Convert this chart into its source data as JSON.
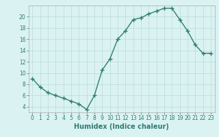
{
  "x": [
    0,
    1,
    2,
    3,
    4,
    5,
    6,
    7,
    8,
    9,
    10,
    11,
    12,
    13,
    14,
    15,
    16,
    17,
    18,
    19,
    20,
    21,
    22,
    23
  ],
  "y": [
    9,
    7.5,
    6.5,
    6,
    5.5,
    5,
    4.5,
    3.5,
    6,
    10.5,
    12.5,
    16,
    17.5,
    19.5,
    19.8,
    20.5,
    21,
    21.5,
    21.5,
    19.5,
    17.5,
    15,
    13.5,
    13.5
  ],
  "line_color": "#2e7d6e",
  "marker": "+",
  "markersize": 4,
  "linewidth": 1.0,
  "markeredgewidth": 1.0,
  "background_color": "#daf2f2",
  "grid_color": "#b8dada",
  "xlabel": "Humidex (Indice chaleur)",
  "xlabel_fontsize": 7,
  "tick_fontsize": 5.5,
  "xlim": [
    -0.5,
    23.5
  ],
  "ylim": [
    3,
    22
  ],
  "yticks": [
    4,
    6,
    8,
    10,
    12,
    14,
    16,
    18,
    20
  ],
  "xticks": [
    0,
    1,
    2,
    3,
    4,
    5,
    6,
    7,
    8,
    9,
    10,
    11,
    12,
    13,
    14,
    15,
    16,
    17,
    18,
    19,
    20,
    21,
    22,
    23
  ]
}
